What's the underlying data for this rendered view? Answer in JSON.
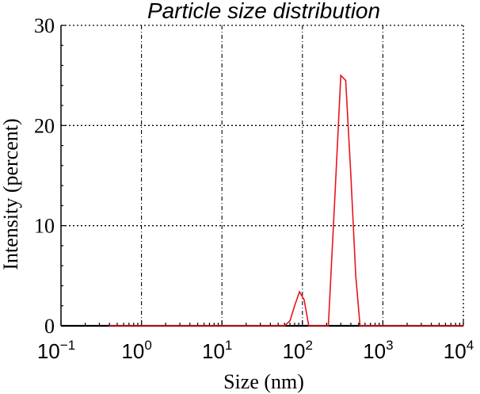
{
  "chart_data": {
    "type": "line",
    "title": "Particle size distribution",
    "xlabel": "Size (nm)",
    "ylabel": "Intensity (percent)",
    "x_scale": "log",
    "xlim": [
      0.1,
      10000
    ],
    "ylim": [
      0,
      30
    ],
    "grid": true,
    "y_ticks": [
      "0",
      "10",
      "20",
      "30"
    ],
    "x_ticks": [
      {
        "base": "10",
        "exp": "-1",
        "value": 0.1
      },
      {
        "base": "10",
        "exp": "0",
        "value": 1
      },
      {
        "base": "10",
        "exp": "1",
        "value": 10
      },
      {
        "base": "10",
        "exp": "2",
        "value": 100
      },
      {
        "base": "10",
        "exp": "3",
        "value": 1000
      },
      {
        "base": "10",
        "exp": "4",
        "value": 10000
      }
    ],
    "series": [
      {
        "color": "#e8141e",
        "x": [
          0.4,
          60,
          70,
          80,
          92,
          105,
          120,
          210,
          250,
          300,
          345,
          400,
          460,
          520,
          600,
          10000
        ],
        "y": [
          0,
          0,
          0.5,
          2.0,
          3.4,
          2.6,
          0,
          0,
          12.0,
          25.0,
          24.5,
          15.0,
          5.0,
          0,
          0,
          0
        ]
      }
    ],
    "baseline_color": "#000000"
  }
}
